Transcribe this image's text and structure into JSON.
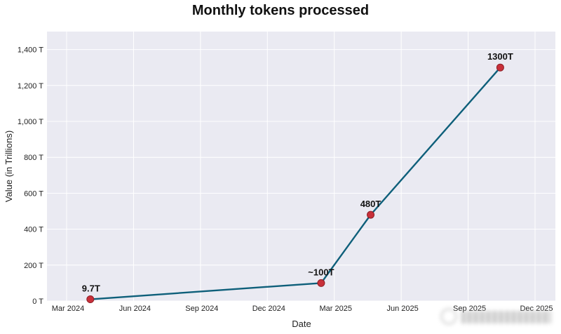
{
  "chart_data": {
    "type": "line",
    "title": "Monthly tokens processed",
    "xlabel": "Date",
    "ylabel": "Value (in Trillions)",
    "ylim": [
      0,
      1500
    ],
    "grid": true,
    "legend": null,
    "x_tick_labels": [
      "Mar 2024",
      "Jun 2024",
      "Sep 2024",
      "Dec 2024",
      "Mar 2025",
      "Jun 2025",
      "Sep 2025",
      "Dec 2025"
    ],
    "y_tick_labels": [
      "0 T",
      "200 T",
      "400 T",
      "600 T",
      "800 T",
      "1,000 T",
      "1,200 T",
      "1,400 T"
    ],
    "y_tick_values": [
      0,
      200,
      400,
      600,
      800,
      1000,
      1200,
      1400
    ],
    "series": [
      {
        "name": "Monthly tokens processed",
        "x": [
          "2024-04",
          "2025-02",
          "2025-04",
          "2025-10"
        ],
        "values": [
          9.7,
          100,
          480,
          1300
        ],
        "annotations": [
          "9.7T",
          "~100T",
          "480T",
          "1300T"
        ]
      }
    ]
  },
  "colors": {
    "line": "#0e5f7a",
    "marker_fill": "#c8303a",
    "marker_edge": "#8e1f27",
    "plot_background": "#eaeaf2",
    "grid": "#ffffff"
  }
}
